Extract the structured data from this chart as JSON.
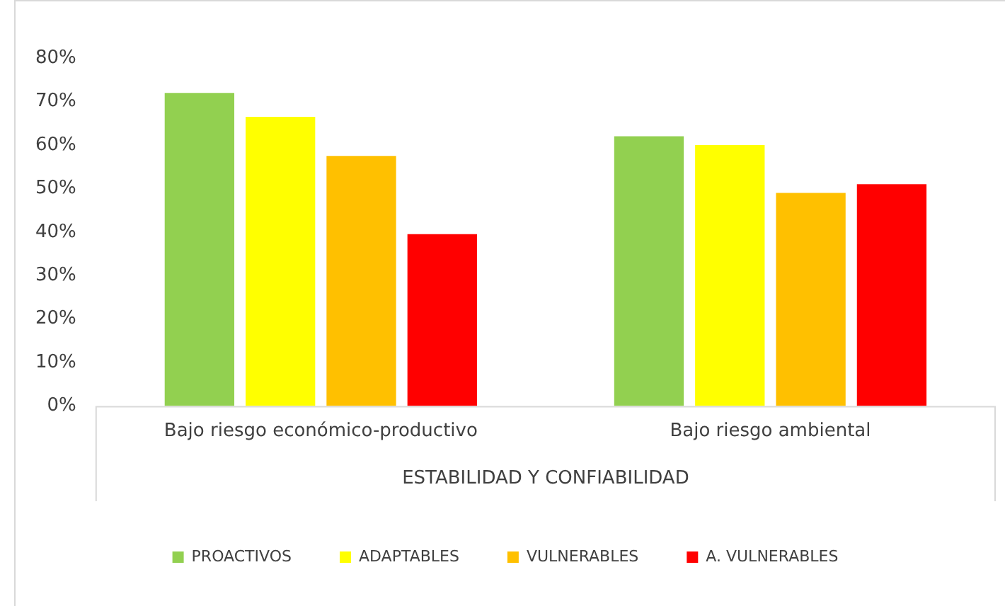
{
  "chart_data": {
    "type": "bar",
    "categories": [
      "Bajo riesgo económico-productivo",
      "Bajo riesgo ambiental"
    ],
    "xlabel": "ESTABILIDAD Y CONFIABILIDAD",
    "series": [
      {
        "name": "PROACTIVOS",
        "color": "#92d050",
        "values": [
          72,
          62
        ]
      },
      {
        "name": "ADAPTABLES",
        "color": "#ffff00",
        "values": [
          66.5,
          60
        ]
      },
      {
        "name": "VULNERABLES",
        "color": "#ffc000",
        "values": [
          57.5,
          49
        ]
      },
      {
        "name": "A. VULNERABLES",
        "color": "#ff0000",
        "values": [
          39.5,
          51
        ]
      }
    ],
    "ylim": [
      0,
      80
    ],
    "yticks": [
      {
        "value": 0,
        "label": "0%"
      },
      {
        "value": 10,
        "label": "10%"
      },
      {
        "value": 20,
        "label": "20%"
      },
      {
        "value": 30,
        "label": "30%"
      },
      {
        "value": 40,
        "label": "40%"
      },
      {
        "value": 50,
        "label": "50%"
      },
      {
        "value": 60,
        "label": "60%"
      },
      {
        "value": 70,
        "label": "70%"
      },
      {
        "value": 80,
        "label": "80%"
      }
    ],
    "grid": false,
    "legend": "bottom"
  }
}
